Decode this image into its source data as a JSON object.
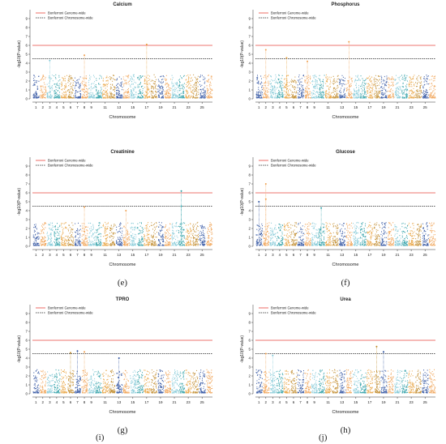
{
  "figure": {
    "chromosome_ticks": [
      "1",
      "2",
      "3",
      "4",
      "5",
      "6",
      "7",
      "8",
      "9",
      "11",
      "13",
      "15",
      "17",
      "19",
      "21",
      "23",
      "25"
    ],
    "y_ticks": [
      "0",
      "1",
      "2",
      "3",
      "4",
      "5",
      "6",
      "7",
      "8",
      "9"
    ],
    "xlabel": "Chromosome",
    "ylabel": "-log10(P-value)",
    "legend": {
      "genome_wide": "Bonferroni Genome-wide",
      "chromosome_wide": "Bonferroni Chromosome-wide"
    },
    "colors": {
      "genome_wide_line": "#e8473f",
      "chromosome_wide_line": "#222222",
      "chrom_palette": [
        "#2b4f9e",
        "#f0a050",
        "#7fc8d6",
        "#2e9fa6",
        "#e8a13c",
        "#c08a2a"
      ]
    }
  },
  "chart_data": [
    {
      "panel_label": "",
      "title": "Calcium",
      "type": "scatter",
      "xlabel": "Chromosome",
      "ylabel": "-log10(P-value)",
      "ylim": [
        0,
        10
      ],
      "genome_wide_threshold": 6.0,
      "chromosome_wide_threshold": 4.5,
      "legend_position": "top-left",
      "peaks": [
        {
          "chromosome": 3,
          "value": 4.3
        },
        {
          "chromosome": 8,
          "value": 4.9
        },
        {
          "chromosome": 17,
          "value": 6.1
        }
      ]
    },
    {
      "panel_label": "",
      "title": "Phosphorus",
      "type": "scatter",
      "xlabel": "Chromosome",
      "ylabel": "-log10(P-value)",
      "ylim": [
        0,
        10
      ],
      "genome_wide_threshold": 6.0,
      "chromosome_wide_threshold": 4.5,
      "legend_position": "top-left",
      "peaks": [
        {
          "chromosome": 2,
          "value": 5.5
        },
        {
          "chromosome": 5,
          "value": 4.6
        },
        {
          "chromosome": 14,
          "value": 6.4
        },
        {
          "chromosome": 8,
          "value": 4.2
        }
      ]
    },
    {
      "panel_label": "(e)",
      "title": "Creatinine",
      "type": "scatter",
      "xlabel": "Chromosome",
      "ylabel": "-log10(P-value)",
      "ylim": [
        0,
        10
      ],
      "genome_wide_threshold": 6.0,
      "chromosome_wide_threshold": 4.5,
      "legend_position": "top-left",
      "peaks": [
        {
          "chromosome": 8,
          "value": 4.4
        },
        {
          "chromosome": 14,
          "value": 4.0
        },
        {
          "chromosome": 22,
          "value": 6.2
        },
        {
          "chromosome": 22,
          "value": 4.5
        }
      ]
    },
    {
      "panel_label": "(f)",
      "title": "Glucose",
      "type": "scatter",
      "xlabel": "Chromosome",
      "ylabel": "-log10(P-value)",
      "ylim": [
        0,
        10
      ],
      "genome_wide_threshold": 6.0,
      "chromosome_wide_threshold": 4.5,
      "legend_position": "top-left",
      "peaks": [
        {
          "chromosome": 1,
          "value": 5.0
        },
        {
          "chromosome": 2,
          "value": 5.3
        },
        {
          "chromosome": 2,
          "value": 7.0
        },
        {
          "chromosome": 10,
          "value": 4.3
        }
      ]
    },
    {
      "panel_label": "(g)",
      "title": "TPRO",
      "type": "scatter",
      "xlabel": "Chromosome",
      "ylabel": "-log10(P-value)",
      "ylim": [
        0,
        10
      ],
      "genome_wide_threshold": 6.0,
      "chromosome_wide_threshold": 4.5,
      "legend_position": "top-left",
      "peaks": [
        {
          "chromosome": 6,
          "value": 4.6
        },
        {
          "chromosome": 7,
          "value": 4.8
        },
        {
          "chromosome": 8,
          "value": 4.7
        },
        {
          "chromosome": 13,
          "value": 4.0
        }
      ]
    },
    {
      "panel_label": "(h)",
      "title": "Urea",
      "type": "scatter",
      "xlabel": "Chromosome",
      "ylabel": "-log10(P-value)",
      "ylim": [
        0,
        10
      ],
      "genome_wide_threshold": 6.0,
      "chromosome_wide_threshold": 4.5,
      "legend_position": "top-left",
      "peaks": [
        {
          "chromosome": 2,
          "value": 4.5
        },
        {
          "chromosome": 3,
          "value": 4.3
        },
        {
          "chromosome": 18,
          "value": 5.3
        },
        {
          "chromosome": 19,
          "value": 4.7
        }
      ]
    }
  ],
  "bottom_labels": [
    "(i)",
    "(j)"
  ]
}
